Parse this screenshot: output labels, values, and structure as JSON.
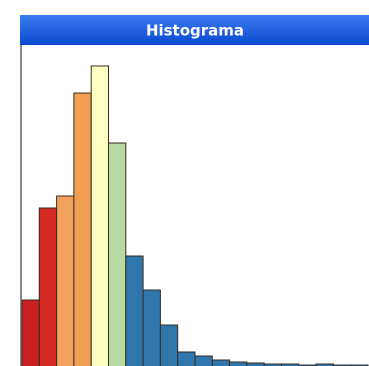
{
  "chart_data": {
    "type": "histogram",
    "title": "Histograma",
    "bins": [
      0,
      1,
      2,
      3,
      4,
      5,
      6,
      7,
      8,
      9,
      10,
      11,
      12,
      13,
      14,
      15,
      16,
      17,
      18,
      19,
      20
    ],
    "values": [
      66,
      158,
      170,
      273,
      300,
      223,
      110,
      76,
      41,
      14,
      10,
      6,
      4,
      3,
      2,
      2,
      1,
      2,
      1,
      1
    ],
    "colors": [
      "#cc1f1f",
      "#d42a22",
      "#f2a25a",
      "#f0a050",
      "#ffffc4",
      "#b6dba0",
      "#2f76ad",
      "#2f76ad",
      "#2f76ad",
      "#2f76ad",
      "#2f76ad",
      "#2f76ad",
      "#2f76ad",
      "#2f76ad",
      "#2f76ad",
      "#2f76ad",
      "#2f76ad",
      "#2f76ad",
      "#2f76ad",
      "#2f76ad"
    ],
    "xlim": [
      0,
      20
    ],
    "ylim": [
      0,
      318
    ]
  }
}
